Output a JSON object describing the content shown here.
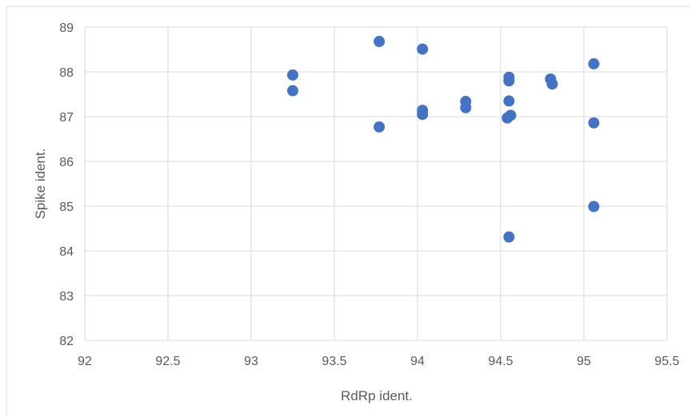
{
  "chart_data": {
    "type": "scatter",
    "xlabel": "RdRp ident.",
    "ylabel": "Spike ident.",
    "xlim": [
      92,
      95.5
    ],
    "ylim": [
      82,
      89
    ],
    "x_ticks": [
      "92",
      "92.5",
      "93",
      "93.5",
      "94",
      "94.5",
      "95",
      "95.5"
    ],
    "y_ticks": [
      "82",
      "83",
      "84",
      "85",
      "86",
      "87",
      "88",
      "89"
    ],
    "grid": true,
    "marker_color": "#4472c4",
    "series": [
      {
        "points": [
          {
            "x": 93.25,
            "y": 87.93
          },
          {
            "x": 93.25,
            "y": 87.58
          },
          {
            "x": 93.77,
            "y": 88.68
          },
          {
            "x": 93.77,
            "y": 86.77
          },
          {
            "x": 94.03,
            "y": 88.51
          },
          {
            "x": 94.03,
            "y": 87.14
          },
          {
            "x": 94.03,
            "y": 87.05
          },
          {
            "x": 94.29,
            "y": 87.34
          },
          {
            "x": 94.29,
            "y": 87.2
          },
          {
            "x": 94.55,
            "y": 87.88
          },
          {
            "x": 94.55,
            "y": 87.8
          },
          {
            "x": 94.55,
            "y": 87.35
          },
          {
            "x": 94.56,
            "y": 87.03
          },
          {
            "x": 94.54,
            "y": 86.97
          },
          {
            "x": 94.55,
            "y": 84.31
          },
          {
            "x": 94.8,
            "y": 87.84
          },
          {
            "x": 94.81,
            "y": 87.73
          },
          {
            "x": 95.06,
            "y": 88.18
          },
          {
            "x": 95.06,
            "y": 86.86
          },
          {
            "x": 95.06,
            "y": 84.99
          }
        ]
      }
    ]
  }
}
